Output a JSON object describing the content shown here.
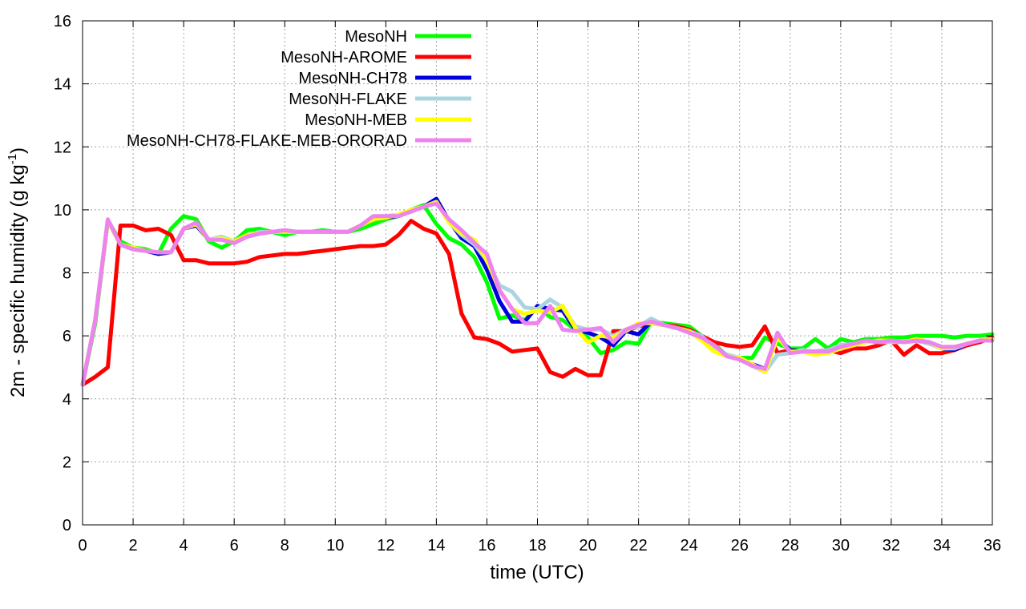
{
  "chart_data": {
    "type": "line",
    "xlabel": "time (UTC)",
    "ylabel": "2m - specific humidity (g kg",
    "ylabel_sup": "-1",
    "ylabel_end": ")",
    "xlim": [
      0,
      36
    ],
    "ylim": [
      0,
      16
    ],
    "xticks": [
      0,
      2,
      4,
      6,
      8,
      10,
      12,
      14,
      16,
      18,
      20,
      22,
      24,
      26,
      28,
      30,
      32,
      34,
      36
    ],
    "yticks": [
      0,
      2,
      4,
      6,
      8,
      10,
      12,
      14,
      16
    ],
    "grid": true,
    "legend_position": "top-left",
    "series": [
      {
        "name": "MesoNH",
        "color": "#00ff00",
        "x": [
          0,
          0.5,
          1,
          1.5,
          2,
          2.5,
          3,
          3.5,
          4,
          4.5,
          5,
          5.5,
          6,
          6.5,
          7,
          7.5,
          8,
          8.5,
          9,
          9.5,
          10,
          10.5,
          11,
          11.5,
          12,
          12.5,
          13,
          13.5,
          14,
          14.5,
          15,
          15.5,
          16,
          16.5,
          17,
          17.5,
          18,
          18.5,
          19,
          19.5,
          20,
          20.5,
          21,
          21.5,
          22,
          22.5,
          23,
          23.5,
          24,
          24.5,
          25,
          25.5,
          26,
          26.5,
          27,
          27.5,
          28,
          28.5,
          29,
          29.5,
          30,
          30.5,
          31,
          31.5,
          32,
          32.5,
          33,
          33.5,
          34,
          34.5,
          35,
          35.5,
          36
        ],
        "values": [
          4.45,
          6.4,
          9.65,
          9.0,
          8.8,
          8.75,
          8.6,
          9.4,
          9.8,
          9.7,
          9.0,
          8.8,
          9.0,
          9.35,
          9.4,
          9.3,
          9.2,
          9.3,
          9.3,
          9.35,
          9.3,
          9.3,
          9.4,
          9.55,
          9.7,
          9.8,
          10.0,
          10.15,
          9.55,
          9.1,
          8.9,
          8.5,
          7.7,
          6.55,
          6.65,
          6.5,
          6.9,
          6.6,
          6.5,
          6.2,
          5.95,
          5.45,
          5.55,
          5.8,
          5.75,
          6.45,
          6.4,
          6.35,
          6.3,
          6.0,
          5.75,
          5.35,
          5.3,
          5.3,
          5.95,
          5.75,
          5.6,
          5.6,
          5.9,
          5.6,
          5.9,
          5.8,
          5.9,
          5.9,
          5.95,
          5.95,
          6.0,
          6.0,
          6.0,
          5.95,
          6.0,
          6.0,
          6.05
        ]
      },
      {
        "name": "MesoNH-AROME",
        "color": "#ff0000",
        "x": [
          0,
          0.5,
          1,
          1.5,
          2,
          2.5,
          3,
          3.5,
          4,
          4.5,
          5,
          5.5,
          6,
          6.5,
          7,
          7.5,
          8,
          8.5,
          9,
          9.5,
          10,
          10.5,
          11,
          11.5,
          12,
          12.5,
          13,
          13.5,
          14,
          14.5,
          15,
          15.5,
          16,
          16.5,
          17,
          17.5,
          18,
          18.5,
          19,
          19.5,
          20,
          20.5,
          21,
          21.5,
          22,
          22.5,
          23,
          23.5,
          24,
          24.5,
          25,
          25.5,
          26,
          26.5,
          27,
          27.5,
          28,
          28.5,
          29,
          29.5,
          30,
          30.5,
          31,
          31.5,
          32,
          32.5,
          33,
          33.5,
          34,
          34.5,
          35,
          35.5,
          36
        ],
        "values": [
          4.45,
          4.7,
          5.0,
          9.5,
          9.5,
          9.35,
          9.4,
          9.2,
          8.4,
          8.4,
          8.3,
          8.3,
          8.3,
          8.35,
          8.5,
          8.55,
          8.6,
          8.6,
          8.65,
          8.7,
          8.75,
          8.8,
          8.85,
          8.85,
          8.9,
          9.2,
          9.65,
          9.4,
          9.25,
          8.6,
          6.7,
          5.95,
          5.9,
          5.75,
          5.5,
          5.55,
          5.6,
          4.85,
          4.7,
          4.95,
          4.75,
          4.75,
          6.15,
          6.15,
          6.3,
          6.4,
          6.35,
          6.3,
          6.2,
          6.0,
          5.8,
          5.7,
          5.65,
          5.7,
          6.3,
          5.45,
          5.55,
          5.5,
          5.5,
          5.55,
          5.45,
          5.6,
          5.6,
          5.7,
          5.85,
          5.4,
          5.7,
          5.45,
          5.45,
          5.55,
          5.7,
          5.8,
          5.95
        ]
      },
      {
        "name": "MesoNH-CH78",
        "color": "#0000dd",
        "x": [
          0,
          0.5,
          1,
          1.5,
          2,
          2.5,
          3,
          3.5,
          4,
          4.5,
          5,
          5.5,
          6,
          6.5,
          7,
          7.5,
          8,
          8.5,
          9,
          9.5,
          10,
          10.5,
          11,
          11.5,
          12,
          12.5,
          13,
          13.5,
          14,
          14.5,
          15,
          15.5,
          16,
          16.5,
          17,
          17.5,
          18,
          18.5,
          19,
          19.5,
          20,
          20.5,
          21,
          21.5,
          22,
          22.5,
          23,
          23.5,
          24,
          24.5,
          25,
          25.5,
          26,
          26.5,
          27,
          27.5,
          28,
          28.5,
          29,
          29.5,
          30,
          30.5,
          31,
          31.5,
          32,
          32.5,
          33,
          33.5,
          34,
          34.5,
          35,
          35.5,
          36
        ],
        "values": [
          4.45,
          6.5,
          9.65,
          8.9,
          8.75,
          8.7,
          8.6,
          8.65,
          9.4,
          9.5,
          9.05,
          9.1,
          8.95,
          9.15,
          9.25,
          9.3,
          9.3,
          9.3,
          9.3,
          9.3,
          9.3,
          9.3,
          9.5,
          9.7,
          9.75,
          9.8,
          9.95,
          10.1,
          10.35,
          9.65,
          9.1,
          8.85,
          8.1,
          7.1,
          6.45,
          6.45,
          6.95,
          6.85,
          6.8,
          6.2,
          6.1,
          5.95,
          5.7,
          6.15,
          6.05,
          6.45,
          6.35,
          6.25,
          6.15,
          6.0,
          5.6,
          5.4,
          5.25,
          5.1,
          4.95,
          5.95,
          5.55,
          5.5,
          5.5,
          5.55,
          5.7,
          5.75,
          5.85,
          5.8,
          5.8,
          5.8,
          5.85,
          5.8,
          5.6,
          5.55,
          5.75,
          5.85,
          5.9
        ]
      },
      {
        "name": "MesoNH-FLAKE",
        "color": "#aad4e0",
        "x": [
          0,
          0.5,
          1,
          1.5,
          2,
          2.5,
          3,
          3.5,
          4,
          4.5,
          5,
          5.5,
          6,
          6.5,
          7,
          7.5,
          8,
          8.5,
          9,
          9.5,
          10,
          10.5,
          11,
          11.5,
          12,
          12.5,
          13,
          13.5,
          14,
          14.5,
          15,
          15.5,
          16,
          16.5,
          17,
          17.5,
          18,
          18.5,
          19,
          19.5,
          20,
          20.5,
          21,
          21.5,
          22,
          22.5,
          23,
          23.5,
          24,
          24.5,
          25,
          25.5,
          26,
          26.5,
          27,
          27.5,
          28,
          28.5,
          29,
          29.5,
          30,
          30.5,
          31,
          31.5,
          32,
          32.5,
          33,
          33.5,
          34,
          34.5,
          35,
          35.5,
          36
        ],
        "values": [
          4.45,
          6.5,
          9.65,
          8.9,
          8.8,
          8.7,
          8.65,
          8.65,
          9.4,
          9.55,
          9.05,
          9.15,
          9.0,
          9.2,
          9.3,
          9.3,
          9.35,
          9.3,
          9.3,
          9.3,
          9.3,
          9.3,
          9.5,
          9.7,
          9.8,
          9.85,
          10.0,
          10.1,
          10.25,
          9.6,
          9.2,
          8.9,
          8.4,
          7.6,
          7.4,
          6.9,
          6.85,
          7.15,
          6.9,
          6.3,
          6.2,
          6.2,
          6.0,
          6.2,
          6.3,
          6.55,
          6.35,
          6.25,
          6.15,
          6.0,
          5.6,
          5.4,
          5.3,
          5.05,
          4.85,
          5.4,
          5.45,
          5.55,
          5.5,
          5.55,
          5.7,
          5.75,
          5.85,
          5.8,
          5.8,
          5.8,
          5.85,
          5.75,
          5.6,
          5.6,
          5.75,
          5.85,
          5.9
        ]
      },
      {
        "name": "MesoNH-MEB",
        "color": "#ffff00",
        "x": [
          0,
          0.5,
          1,
          1.5,
          2,
          2.5,
          3,
          3.5,
          4,
          4.5,
          5,
          5.5,
          6,
          6.5,
          7,
          7.5,
          8,
          8.5,
          9,
          9.5,
          10,
          10.5,
          11,
          11.5,
          12,
          12.5,
          13,
          13.5,
          14,
          14.5,
          15,
          15.5,
          16,
          16.5,
          17,
          17.5,
          18,
          18.5,
          19,
          19.5,
          20,
          20.5,
          21,
          21.5,
          22,
          22.5,
          23,
          23.5,
          24,
          24.5,
          25,
          25.5,
          26,
          26.5,
          27,
          27.5,
          28,
          28.5,
          29,
          29.5,
          30,
          30.5,
          31,
          31.5,
          32,
          32.5,
          33,
          33.5,
          34,
          34.5,
          35,
          35.5,
          36
        ],
        "values": [
          4.45,
          6.5,
          9.65,
          8.9,
          8.8,
          8.7,
          8.65,
          8.65,
          9.4,
          9.55,
          9.05,
          9.1,
          9.0,
          9.2,
          9.25,
          9.3,
          9.3,
          9.3,
          9.3,
          9.3,
          9.3,
          9.3,
          9.5,
          9.7,
          9.75,
          9.85,
          10.0,
          10.1,
          10.25,
          9.6,
          9.25,
          9.05,
          8.4,
          7.45,
          6.85,
          6.7,
          6.8,
          6.75,
          6.95,
          6.25,
          5.8,
          6.0,
          5.95,
          6.15,
          6.4,
          6.4,
          6.35,
          6.25,
          6.15,
          5.85,
          5.5,
          5.35,
          5.3,
          5.1,
          4.85,
          5.95,
          5.5,
          5.5,
          5.4,
          5.45,
          5.6,
          5.7,
          5.8,
          5.85,
          5.85,
          5.8,
          5.9,
          5.8,
          5.6,
          5.65,
          5.75,
          5.85,
          5.9
        ]
      },
      {
        "name": "MesoNH-CH78-FLAKE-MEB-ORORAD",
        "color": "#ee82ee",
        "x": [
          0,
          0.5,
          1,
          1.5,
          2,
          2.5,
          3,
          3.5,
          4,
          4.5,
          5,
          5.5,
          6,
          6.5,
          7,
          7.5,
          8,
          8.5,
          9,
          9.5,
          10,
          10.5,
          11,
          11.5,
          12,
          12.5,
          13,
          13.5,
          14,
          14.5,
          15,
          15.5,
          16,
          16.5,
          17,
          17.5,
          18,
          18.5,
          19,
          19.5,
          20,
          20.5,
          21,
          21.5,
          22,
          22.5,
          23,
          23.5,
          24,
          24.5,
          25,
          25.5,
          26,
          26.5,
          27,
          27.5,
          28,
          28.5,
          29,
          29.5,
          30,
          30.5,
          31,
          31.5,
          32,
          32.5,
          33,
          33.5,
          34,
          34.5,
          35,
          35.5,
          36
        ],
        "values": [
          4.45,
          6.5,
          9.7,
          8.9,
          8.75,
          8.7,
          8.65,
          8.65,
          9.4,
          9.6,
          9.05,
          9.05,
          8.95,
          9.15,
          9.25,
          9.3,
          9.35,
          9.3,
          9.3,
          9.3,
          9.3,
          9.3,
          9.5,
          9.8,
          9.8,
          9.8,
          9.95,
          10.1,
          10.2,
          9.7,
          9.35,
          8.95,
          8.6,
          7.45,
          6.85,
          6.4,
          6.4,
          6.95,
          6.2,
          6.15,
          6.2,
          6.25,
          5.8,
          6.2,
          6.35,
          6.45,
          6.35,
          6.25,
          6.1,
          5.95,
          5.7,
          5.35,
          5.25,
          5.05,
          4.95,
          6.1,
          5.45,
          5.5,
          5.5,
          5.5,
          5.65,
          5.75,
          5.85,
          5.8,
          5.85,
          5.8,
          5.85,
          5.8,
          5.65,
          5.65,
          5.75,
          5.85,
          5.85
        ]
      }
    ]
  }
}
